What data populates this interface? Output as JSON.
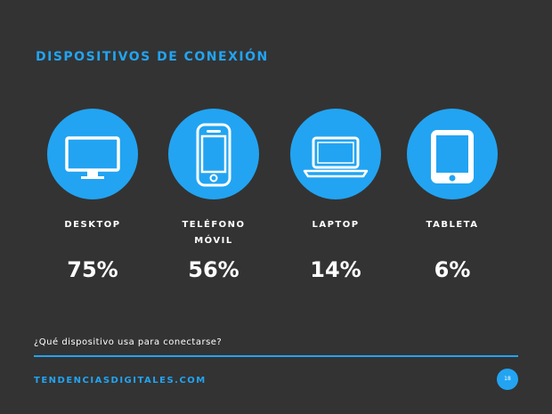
{
  "title": "DISPOSITIVOS DE CONEXIÓN",
  "accent_color": "#22a4f2",
  "background_color": "#333333",
  "devices": [
    {
      "icon": "desktop-monitor-icon",
      "label_line1": "DESKTOP",
      "label_line2": "",
      "percent": "75%"
    },
    {
      "icon": "mobile-phone-icon",
      "label_line1": "TELÉFONO",
      "label_line2": "MÓVIL",
      "percent": "56%"
    },
    {
      "icon": "laptop-icon",
      "label_line1": "LAPTOP",
      "label_line2": "",
      "percent": "14%"
    },
    {
      "icon": "tablet-icon",
      "label_line1": "TABLETA",
      "label_line2": "",
      "percent": "6%"
    }
  ],
  "question": "¿Qué dispositivo usa para conectarse?",
  "footer": "TENDENCIASDIGITALES.COM",
  "page_number": "18"
}
